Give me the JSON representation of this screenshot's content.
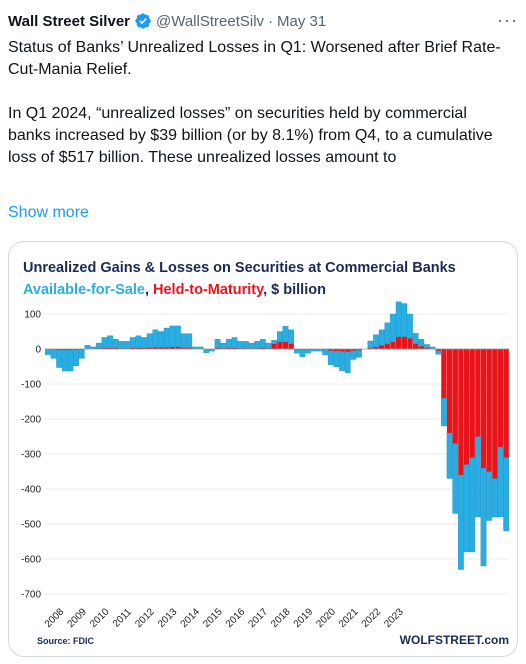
{
  "tweet": {
    "author_name": "Wall Street Silver",
    "verified_badge_icon": "verified-check-icon",
    "handle": "@WallStreetSilv",
    "separator": "·",
    "date": "May 31",
    "more_icon": "more-horizontal-icon",
    "more_glyph": "···",
    "paragraph1": "Status of Banks’ Unrealized Losses in Q1: Worsened after Brief Rate-Cut-Mania Relief.",
    "paragraph2": "In Q1 2024, “unrealized losses” on securities held by commercial banks increased by $39 billion (or by 8.1%) from Q4, to a cumulative loss of $517 billion. These unrealized losses amount to",
    "show_more": "Show more"
  },
  "colors": {
    "afs": "#29aee3",
    "htm": "#e8141b",
    "link": "#1d9bf0"
  },
  "chart_data": {
    "type": "bar",
    "stacked": true,
    "title": "Unrealized Gains & Losses on Securities at Commercial Banks",
    "subtitle_parts": [
      "Available-for-Sale",
      ", ",
      "Held-to-Maturity",
      ", $ billion"
    ],
    "source": "Source: FDIC",
    "brand": "WOLFSTREET.com",
    "ylim": [
      -700,
      100
    ],
    "yticks": [
      100,
      0,
      -100,
      -200,
      -300,
      -400,
      -500,
      -600,
      -700
    ],
    "xticks": [
      "2008",
      "2009",
      "2010",
      "2011",
      "2012",
      "2013",
      "2014",
      "2015",
      "2016",
      "2017",
      "2018",
      "2019",
      "2020",
      "2021",
      "2022",
      "2023"
    ],
    "x_start": "2008 Q1",
    "series": [
      {
        "name": "Available-for-Sale",
        "values": [
          -15,
          -25,
          -50,
          -60,
          -60,
          -45,
          -25,
          10,
          5,
          15,
          30,
          35,
          25,
          20,
          20,
          30,
          35,
          30,
          40,
          50,
          45,
          55,
          60,
          60,
          40,
          40,
          5,
          5,
          -10,
          -5,
          25,
          15,
          25,
          30,
          20,
          20,
          15,
          20,
          25,
          15,
          10,
          30,
          45,
          40,
          -10,
          -20,
          -10,
          -5,
          -5,
          -15,
          -40,
          -45,
          -55,
          -60,
          -25,
          -20,
          0,
          20,
          35,
          45,
          60,
          80,
          100,
          95,
          70,
          30,
          20,
          10,
          5,
          -10,
          -80,
          -130,
          -200,
          -270,
          -250,
          -270,
          -230,
          -280,
          -140,
          -110,
          -200,
          -210
        ],
        "colors_key": "afs"
      },
      {
        "name": "Held-to-Maturity",
        "values": [
          -1,
          -2,
          -3,
          -3,
          -3,
          -3,
          -2,
          1,
          1,
          2,
          3,
          3,
          3,
          2,
          2,
          3,
          3,
          3,
          4,
          5,
          5,
          5,
          6,
          6,
          4,
          4,
          1,
          1,
          -1,
          -1,
          3,
          2,
          3,
          3,
          2,
          2,
          2,
          2,
          3,
          2,
          15,
          20,
          20,
          15,
          -2,
          -2,
          -2,
          -1,
          -1,
          -2,
          -5,
          -6,
          -7,
          -8,
          -5,
          -4,
          0,
          3,
          6,
          10,
          15,
          20,
          35,
          35,
          30,
          15,
          8,
          3,
          1,
          -5,
          -140,
          -240,
          -270,
          -360,
          -330,
          -310,
          -250,
          -340,
          -350,
          -370,
          -280,
          -310
        ],
        "colors_key": "htm"
      }
    ]
  }
}
